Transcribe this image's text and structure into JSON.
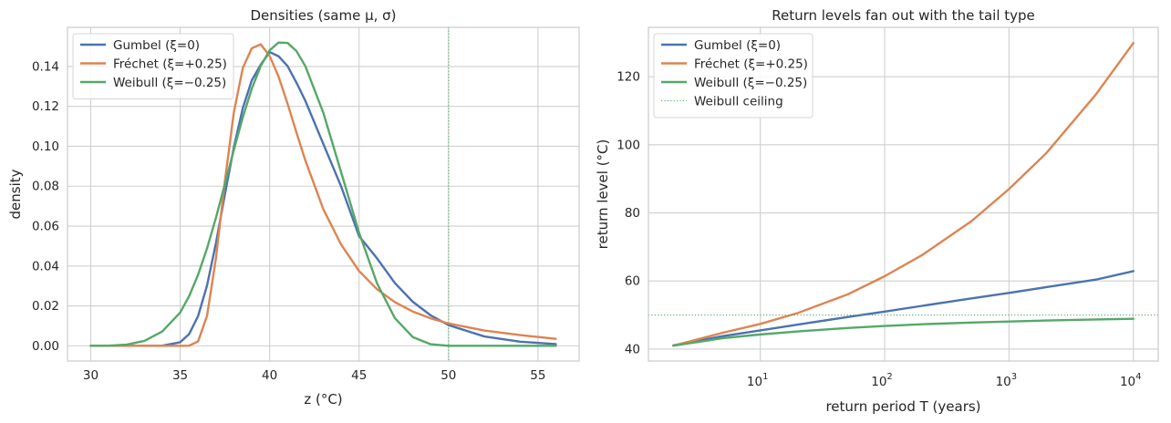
{
  "chart_data": [
    {
      "type": "line",
      "title": "Densities (same μ, σ)",
      "xlabel": "z (°C)",
      "ylabel": "density",
      "xlim": [
        28.7,
        57.3
      ],
      "ylim": [
        -0.0076,
        0.1596
      ],
      "xscale": "linear",
      "xticks": [
        30,
        35,
        40,
        45,
        50,
        55
      ],
      "xtick_labels": [
        "30",
        "35",
        "40",
        "45",
        "50",
        "55"
      ],
      "yticks": [
        0.0,
        0.02,
        0.04,
        0.06,
        0.08,
        0.1,
        0.12,
        0.14
      ],
      "ytick_labels": [
        "0.00",
        "0.02",
        "0.04",
        "0.06",
        "0.08",
        "0.10",
        "0.12",
        "0.14"
      ],
      "grid": true,
      "legend_position": "upper-left",
      "series": [
        {
          "name": "Gumbel (ξ=0)",
          "color": "#4c72b0",
          "linestyle": "solid",
          "x": [
            30,
            33,
            34,
            35,
            35.5,
            36,
            36.5,
            37,
            37.5,
            38,
            38.5,
            39,
            39.5,
            40,
            40.5,
            41,
            41.5,
            42,
            43,
            44,
            45,
            46,
            47,
            48,
            49,
            50,
            52,
            54,
            56
          ],
          "y": [
            0.0,
            0.0,
            0.0001,
            0.0018,
            0.0059,
            0.0149,
            0.0302,
            0.0515,
            0.0759,
            0.0995,
            0.1191,
            0.133,
            0.1409,
            0.1472,
            0.1451,
            0.1402,
            0.1319,
            0.1227,
            0.1012,
            0.0798,
            0.055,
            0.0439,
            0.0315,
            0.0221,
            0.0153,
            0.0104,
            0.0047,
            0.0021,
            0.0009
          ]
        },
        {
          "name": "Fréchet (ξ=+0.25)",
          "color": "#dd8452",
          "linestyle": "solid",
          "x": [
            30,
            34,
            35,
            35.5,
            36,
            36.5,
            37,
            37.5,
            38,
            38.5,
            39,
            39.5,
            40,
            40.5,
            41,
            41.5,
            42,
            43,
            44,
            45,
            46,
            47,
            48,
            49,
            50,
            52,
            54,
            56
          ],
          "y": [
            0.0,
            0.0,
            0.0,
            0.0001,
            0.0022,
            0.015,
            0.044,
            0.0826,
            0.117,
            0.1392,
            0.1491,
            0.1511,
            0.1453,
            0.1349,
            0.1214,
            0.1069,
            0.0928,
            0.0685,
            0.0507,
            0.0375,
            0.0284,
            0.0219,
            0.0172,
            0.0138,
            0.0112,
            0.0077,
            0.0054,
            0.0035
          ]
        },
        {
          "name": "Weibull (ξ=−0.25)",
          "color": "#55a868",
          "linestyle": "solid",
          "x": [
            30,
            31,
            32,
            33,
            34,
            35,
            35.5,
            36,
            36.5,
            37,
            37.5,
            38,
            38.5,
            39,
            39.5,
            40,
            40.5,
            41,
            41.5,
            42,
            43,
            44,
            45,
            46,
            47,
            48,
            49,
            50,
            56
          ],
          "y": [
            0.0,
            0.0001,
            0.0006,
            0.0025,
            0.0072,
            0.0167,
            0.0249,
            0.0356,
            0.0488,
            0.0642,
            0.0811,
            0.0982,
            0.1145,
            0.1288,
            0.1402,
            0.1481,
            0.152,
            0.1518,
            0.1477,
            0.1401,
            0.1168,
            0.0869,
            0.0567,
            0.0314,
            0.0139,
            0.0044,
            0.0008,
            0.0,
            0.0
          ]
        }
      ],
      "vlines": [
        {
          "x": 50,
          "color": "#55a868",
          "linestyle": "dotted"
        }
      ]
    },
    {
      "type": "line",
      "title": "Return levels fan out with the tail type",
      "xlabel": "return period T (years)",
      "ylabel": "return level (°C)",
      "xscale": "log",
      "xlim": [
        1.26,
        15850
      ],
      "ylim": [
        36.5,
        134.5
      ],
      "xticks": [
        10,
        100,
        1000,
        10000
      ],
      "xtick_bases": [
        "10",
        "10",
        "10",
        "10"
      ],
      "xtick_exponents": [
        "1",
        "2",
        "3",
        "4"
      ],
      "yticks": [
        40,
        60,
        80,
        100,
        120
      ],
      "ytick_labels": [
        "40",
        "60",
        "80",
        "100",
        "120"
      ],
      "grid": true,
      "legend_position": "upper-left",
      "series": [
        {
          "name": "Gumbel (ξ=0)",
          "color": "#4c72b0",
          "linestyle": "solid",
          "x": [
            2,
            5,
            10,
            20,
            50,
            100,
            200,
            500,
            1000,
            2000,
            5000,
            10000
          ],
          "y": [
            41.1,
            43.8,
            45.5,
            47.2,
            49.4,
            51.0,
            52.7,
            54.9,
            56.5,
            58.2,
            60.4,
            62.9
          ]
        },
        {
          "name": "Fréchet (ξ=+0.25)",
          "color": "#dd8452",
          "linestyle": "solid",
          "x": [
            2,
            5,
            10,
            20,
            50,
            100,
            200,
            500,
            1000,
            2000,
            5000,
            10000
          ],
          "y": [
            41.0,
            44.8,
            47.4,
            50.6,
            56.0,
            61.4,
            67.6,
            77.6,
            87.0,
            97.6,
            114.8,
            129.9
          ]
        },
        {
          "name": "Weibull (ξ=−0.25)",
          "color": "#55a868",
          "linestyle": "solid",
          "x": [
            2,
            5,
            10,
            20,
            50,
            100,
            200,
            500,
            1000,
            2000,
            5000,
            10000
          ],
          "y": [
            41.0,
            43.2,
            44.3,
            45.2,
            46.2,
            46.8,
            47.3,
            47.8,
            48.1,
            48.4,
            48.7,
            48.9
          ]
        },
        {
          "name": "Weibull ceiling",
          "color": "#55a868",
          "linestyle": "dotted",
          "x": [
            1.26,
            15850
          ],
          "y": [
            50,
            50
          ]
        }
      ]
    }
  ]
}
